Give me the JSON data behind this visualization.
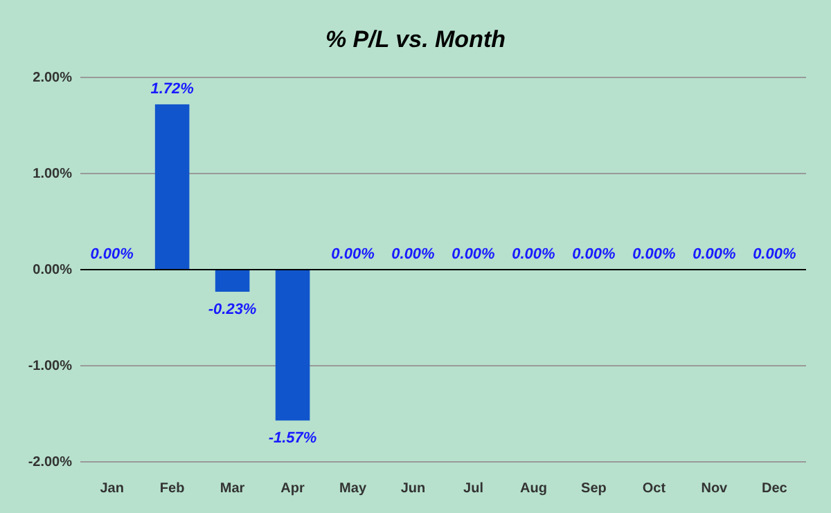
{
  "chart_data": {
    "type": "bar",
    "title": "% P/L vs. Month",
    "categories": [
      "Jan",
      "Feb",
      "Mar",
      "Apr",
      "May",
      "Jun",
      "Jul",
      "Aug",
      "Sep",
      "Oct",
      "Nov",
      "Dec"
    ],
    "values": [
      0,
      1.72,
      -0.23,
      -1.57,
      0,
      0,
      0,
      0,
      0,
      0,
      0,
      0
    ],
    "value_labels": [
      "0.00%",
      "1.72%",
      "-0.23%",
      "-1.57%",
      "0.00%",
      "0.00%",
      "0.00%",
      "0.00%",
      "0.00%",
      "0.00%",
      "0.00%",
      "0.00%"
    ],
    "color": "#1155cc",
    "ylim": [
      -2,
      2
    ],
    "yticks": [
      {
        "value": -2,
        "label": "-2.00%"
      },
      {
        "value": -1,
        "label": "-1.00%"
      },
      {
        "value": 0,
        "label": "0.00%"
      },
      {
        "value": 1,
        "label": "1.00%"
      },
      {
        "value": 2,
        "label": "2.00%"
      }
    ],
    "grid": "y"
  }
}
